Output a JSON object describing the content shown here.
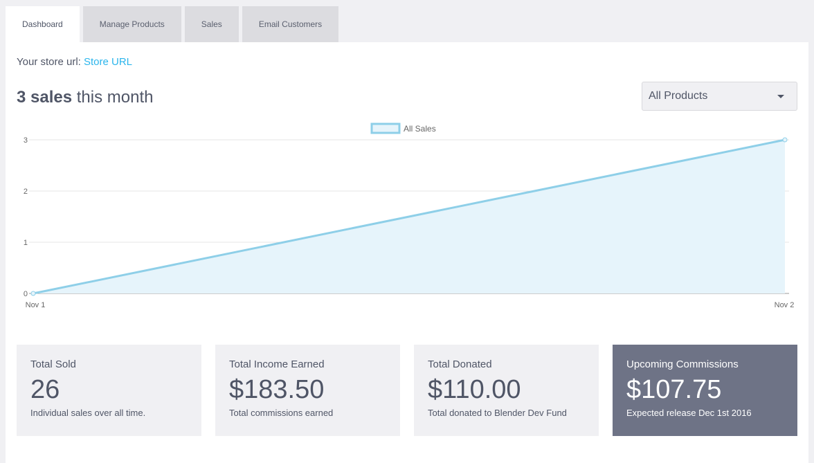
{
  "tabs": [
    {
      "label": "Dashboard",
      "active": true
    },
    {
      "label": "Manage Products"
    },
    {
      "label": "Sales"
    },
    {
      "label": "Email Customers"
    }
  ],
  "store": {
    "prefix": "Your store url: ",
    "link": "Store URL"
  },
  "heading": {
    "bold": "3 sales",
    "rest": " this month"
  },
  "product_filter": {
    "selected": "All Products",
    "icon": "caret-down-icon"
  },
  "chart_data": {
    "type": "area",
    "x": [
      "Nov 1",
      "Nov 2"
    ],
    "series": [
      {
        "name": "All Sales",
        "values": [
          0,
          3
        ]
      }
    ],
    "ylim": [
      0,
      3
    ],
    "yticks": [
      "0",
      "1",
      "2",
      "3"
    ],
    "grid": true,
    "legend": "top-center",
    "colors": {
      "line": "#8ecfe8",
      "fill": "#e6f4fb"
    }
  },
  "cards": [
    {
      "label": "Total Sold",
      "value": "26",
      "sub": "Individual sales over all time."
    },
    {
      "label": "Total Income Earned",
      "value": "$183.50",
      "sub": "Total commissions earned"
    },
    {
      "label": "Total Donated",
      "value": "$110.00",
      "sub": "Total donated to Blender Dev Fund"
    },
    {
      "label": "Upcoming Commissions",
      "value": "$107.75",
      "sub": "Expected release Dec 1st 2016",
      "highlight": true
    }
  ]
}
